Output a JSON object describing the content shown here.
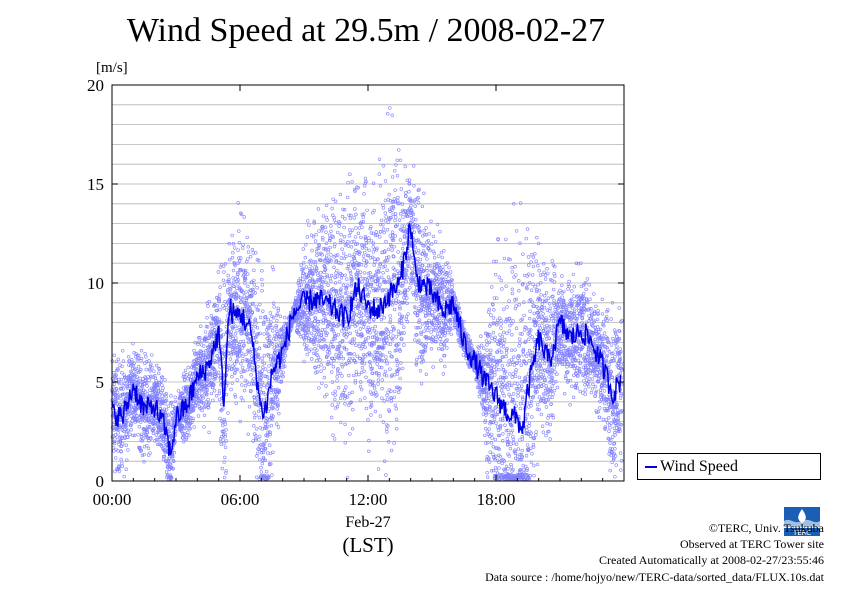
{
  "chart_data": {
    "type": "scatter",
    "title": "Wind Speed at 29.5m / 2008-02-27",
    "ylabel": "[m/s]",
    "xlabel": "(LST)",
    "x_date_label": "Feb-27",
    "xlim": [
      "00:00",
      "24:00"
    ],
    "ylim": [
      0,
      20
    ],
    "x_ticks": [
      "00:00",
      "06:00",
      "12:00",
      "18:00"
    ],
    "y_ticks": [
      0,
      5,
      10,
      15,
      20
    ],
    "grid": true,
    "legend_position": "bottom-right outside",
    "colors": {
      "line": "#0000e6",
      "points": "#8080ff"
    },
    "series": [
      {
        "name": "Wind Speed",
        "style": "line",
        "x": [
          "00:00",
          "00:30",
          "01:00",
          "01:30",
          "02:00",
          "02:30",
          "02:45",
          "03:00",
          "03:30",
          "04:00",
          "04:30",
          "05:00",
          "05:15",
          "05:30",
          "05:45",
          "06:00",
          "06:30",
          "07:00",
          "07:15",
          "07:30",
          "08:00",
          "08:30",
          "09:00",
          "09:30",
          "10:00",
          "10:30",
          "11:00",
          "11:30",
          "12:00",
          "12:30",
          "13:00",
          "13:30",
          "13:45",
          "14:00",
          "14:15",
          "14:30",
          "15:00",
          "15:30",
          "16:00",
          "16:30",
          "17:00",
          "17:30",
          "18:00",
          "18:30",
          "19:00",
          "19:15",
          "19:30",
          "20:00",
          "20:30",
          "21:00",
          "21:30",
          "22:00",
          "22:30",
          "23:00",
          "23:30",
          "23:50"
        ],
        "y": [
          3.5,
          3.2,
          4.8,
          3.6,
          3.8,
          2.6,
          1.3,
          3.2,
          3.8,
          5.2,
          5.8,
          7.5,
          4.0,
          8.8,
          8.3,
          8.5,
          7.6,
          3.5,
          3.8,
          5.5,
          6.5,
          8.5,
          9.0,
          9.2,
          9.0,
          8.6,
          8.2,
          9.8,
          8.8,
          8.6,
          9.4,
          10.0,
          11.5,
          13.0,
          10.2,
          10.0,
          9.5,
          8.5,
          9.0,
          7.0,
          6.0,
          5.0,
          4.3,
          3.5,
          3.1,
          2.6,
          4.6,
          7.2,
          6.0,
          8.0,
          7.2,
          7.6,
          7.0,
          5.8,
          4.4,
          5.1
        ]
      },
      {
        "name": "",
        "style": "points",
        "description_envelope_upper": [
          6.5,
          6.5,
          7.0,
          6.5,
          6.0,
          5.5,
          4.0,
          6.0,
          7.5,
          9.0,
          10.5,
          12.0,
          14.0,
          12.0,
          11.0,
          11.0,
          8.0,
          9.0,
          12.0,
          14.0,
          14.5,
          14.5,
          15.0,
          15.5,
          15.5,
          16.0,
          19.0,
          17.0,
          16.0,
          15.0,
          13.0,
          12.0,
          10.0,
          8.0,
          6.5,
          8.5,
          12.0,
          13.0,
          14.5,
          13.0,
          12.0,
          11.0,
          10.5,
          11.0,
          11.0,
          10.0,
          9.0,
          9.0
        ],
        "x_hours_half": [
          0,
          0.5,
          1,
          1.5,
          2,
          2.5,
          3,
          3.5,
          4,
          4.5,
          5,
          5.5,
          6,
          6.5,
          7,
          7.5,
          8,
          8.5,
          9,
          9.5,
          10,
          10.5,
          11,
          11.5,
          12,
          12.5,
          13,
          13.5,
          14,
          14.5,
          15,
          15.5,
          16,
          16.5,
          17,
          17.5,
          18,
          18.5,
          19,
          19.5,
          20,
          20.5,
          21,
          21.5,
          22,
          22.5,
          23,
          23.5
        ]
      }
    ]
  },
  "legend": {
    "label": "Wind Speed"
  },
  "credits": {
    "line1": "©TERC, Univ. Tsukuba",
    "line2": "Observed at TERC Tower site",
    "line3": "Created Automatically at 2008-02-27/23:55:46",
    "line4": "Data source : /home/hojyo/new/TERC-data/sorted_data/FLUX.10s.dat"
  },
  "logo": {
    "text": "TERC",
    "icon": "terc-logo-icon"
  }
}
